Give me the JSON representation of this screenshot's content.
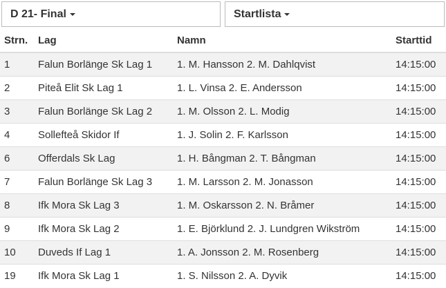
{
  "filters": {
    "class": "D 21- Final",
    "view": "Startlista"
  },
  "table": {
    "columns": [
      "Strn.",
      "Lag",
      "Namn",
      "Starttid"
    ],
    "rows": [
      [
        "1",
        "Falun Borlänge Sk Lag 1",
        "1. M. Hansson 2. M. Dahlqvist",
        "14:15:00"
      ],
      [
        "2",
        "Piteå Elit Sk Lag 1",
        "1. L. Vinsa 2. E. Andersson",
        "14:15:00"
      ],
      [
        "3",
        "Falun Borlänge Sk Lag 2",
        "1. M. Olsson 2. L. Modig",
        "14:15:00"
      ],
      [
        "4",
        "Sollefteå Skidor If",
        "1. J. Solin 2. F. Karlsson",
        "14:15:00"
      ],
      [
        "6",
        "Offerdals Sk Lag",
        "1. H. Bångman 2. T. Bångman",
        "14:15:00"
      ],
      [
        "7",
        "Falun Borlänge Sk Lag 3",
        "1. M. Larsson 2. M. Jonasson",
        "14:15:00"
      ],
      [
        "8",
        "Ifk Mora Sk Lag 3",
        "1. M. Oskarsson 2. N. Bråmer",
        "14:15:00"
      ],
      [
        "9",
        "Ifk Mora Sk Lag 2",
        "1. E. Björklund 2. J. Lundgren Wikström",
        "14:15:00"
      ],
      [
        "10",
        "Duveds If Lag 1",
        "1. A. Jonsson 2. M. Rosenberg",
        "14:15:00"
      ],
      [
        "19",
        "Ifk Mora Sk Lag 1",
        "1. S. Nilsson 2. A. Dyvik",
        "14:15:00"
      ]
    ]
  }
}
